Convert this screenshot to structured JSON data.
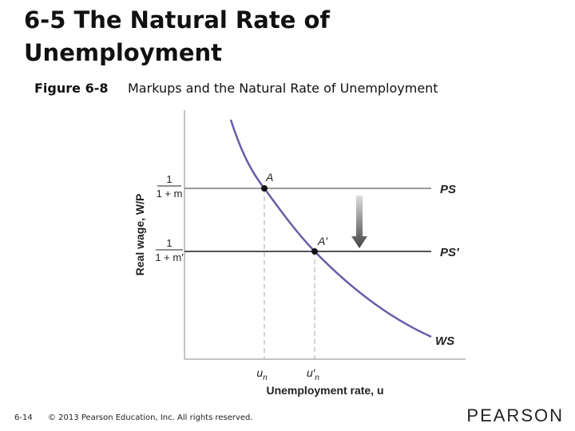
{
  "slide": {
    "title_lines": [
      "6-5 The Natural Rate of",
      "Unemployment"
    ],
    "figure": {
      "number": "Figure 6-8",
      "caption": "Markups and the Natural Rate of Unemployment"
    },
    "diagram": {
      "y_axis_label": "Real wage, W/P",
      "x_axis_label": "Unemployment rate, u",
      "y_tick_labels": [
        {
          "numerator": "1",
          "denominator": "1 + m"
        },
        {
          "numerator": "1",
          "denominator": "1 + m′"
        }
      ],
      "x_tick_labels": [
        {
          "base": "u",
          "sub": "n"
        },
        {
          "base": "u′",
          "sub": "n"
        }
      ],
      "curves": {
        "ps": "PS",
        "ps_prime": "PS′",
        "ws": "WS"
      },
      "points": [
        "A",
        "A′"
      ]
    },
    "footer": {
      "page": "6-14",
      "copyright": "© 2013 Pearson Education, Inc. All rights reserved.",
      "brand": "PEARSON"
    }
  }
}
